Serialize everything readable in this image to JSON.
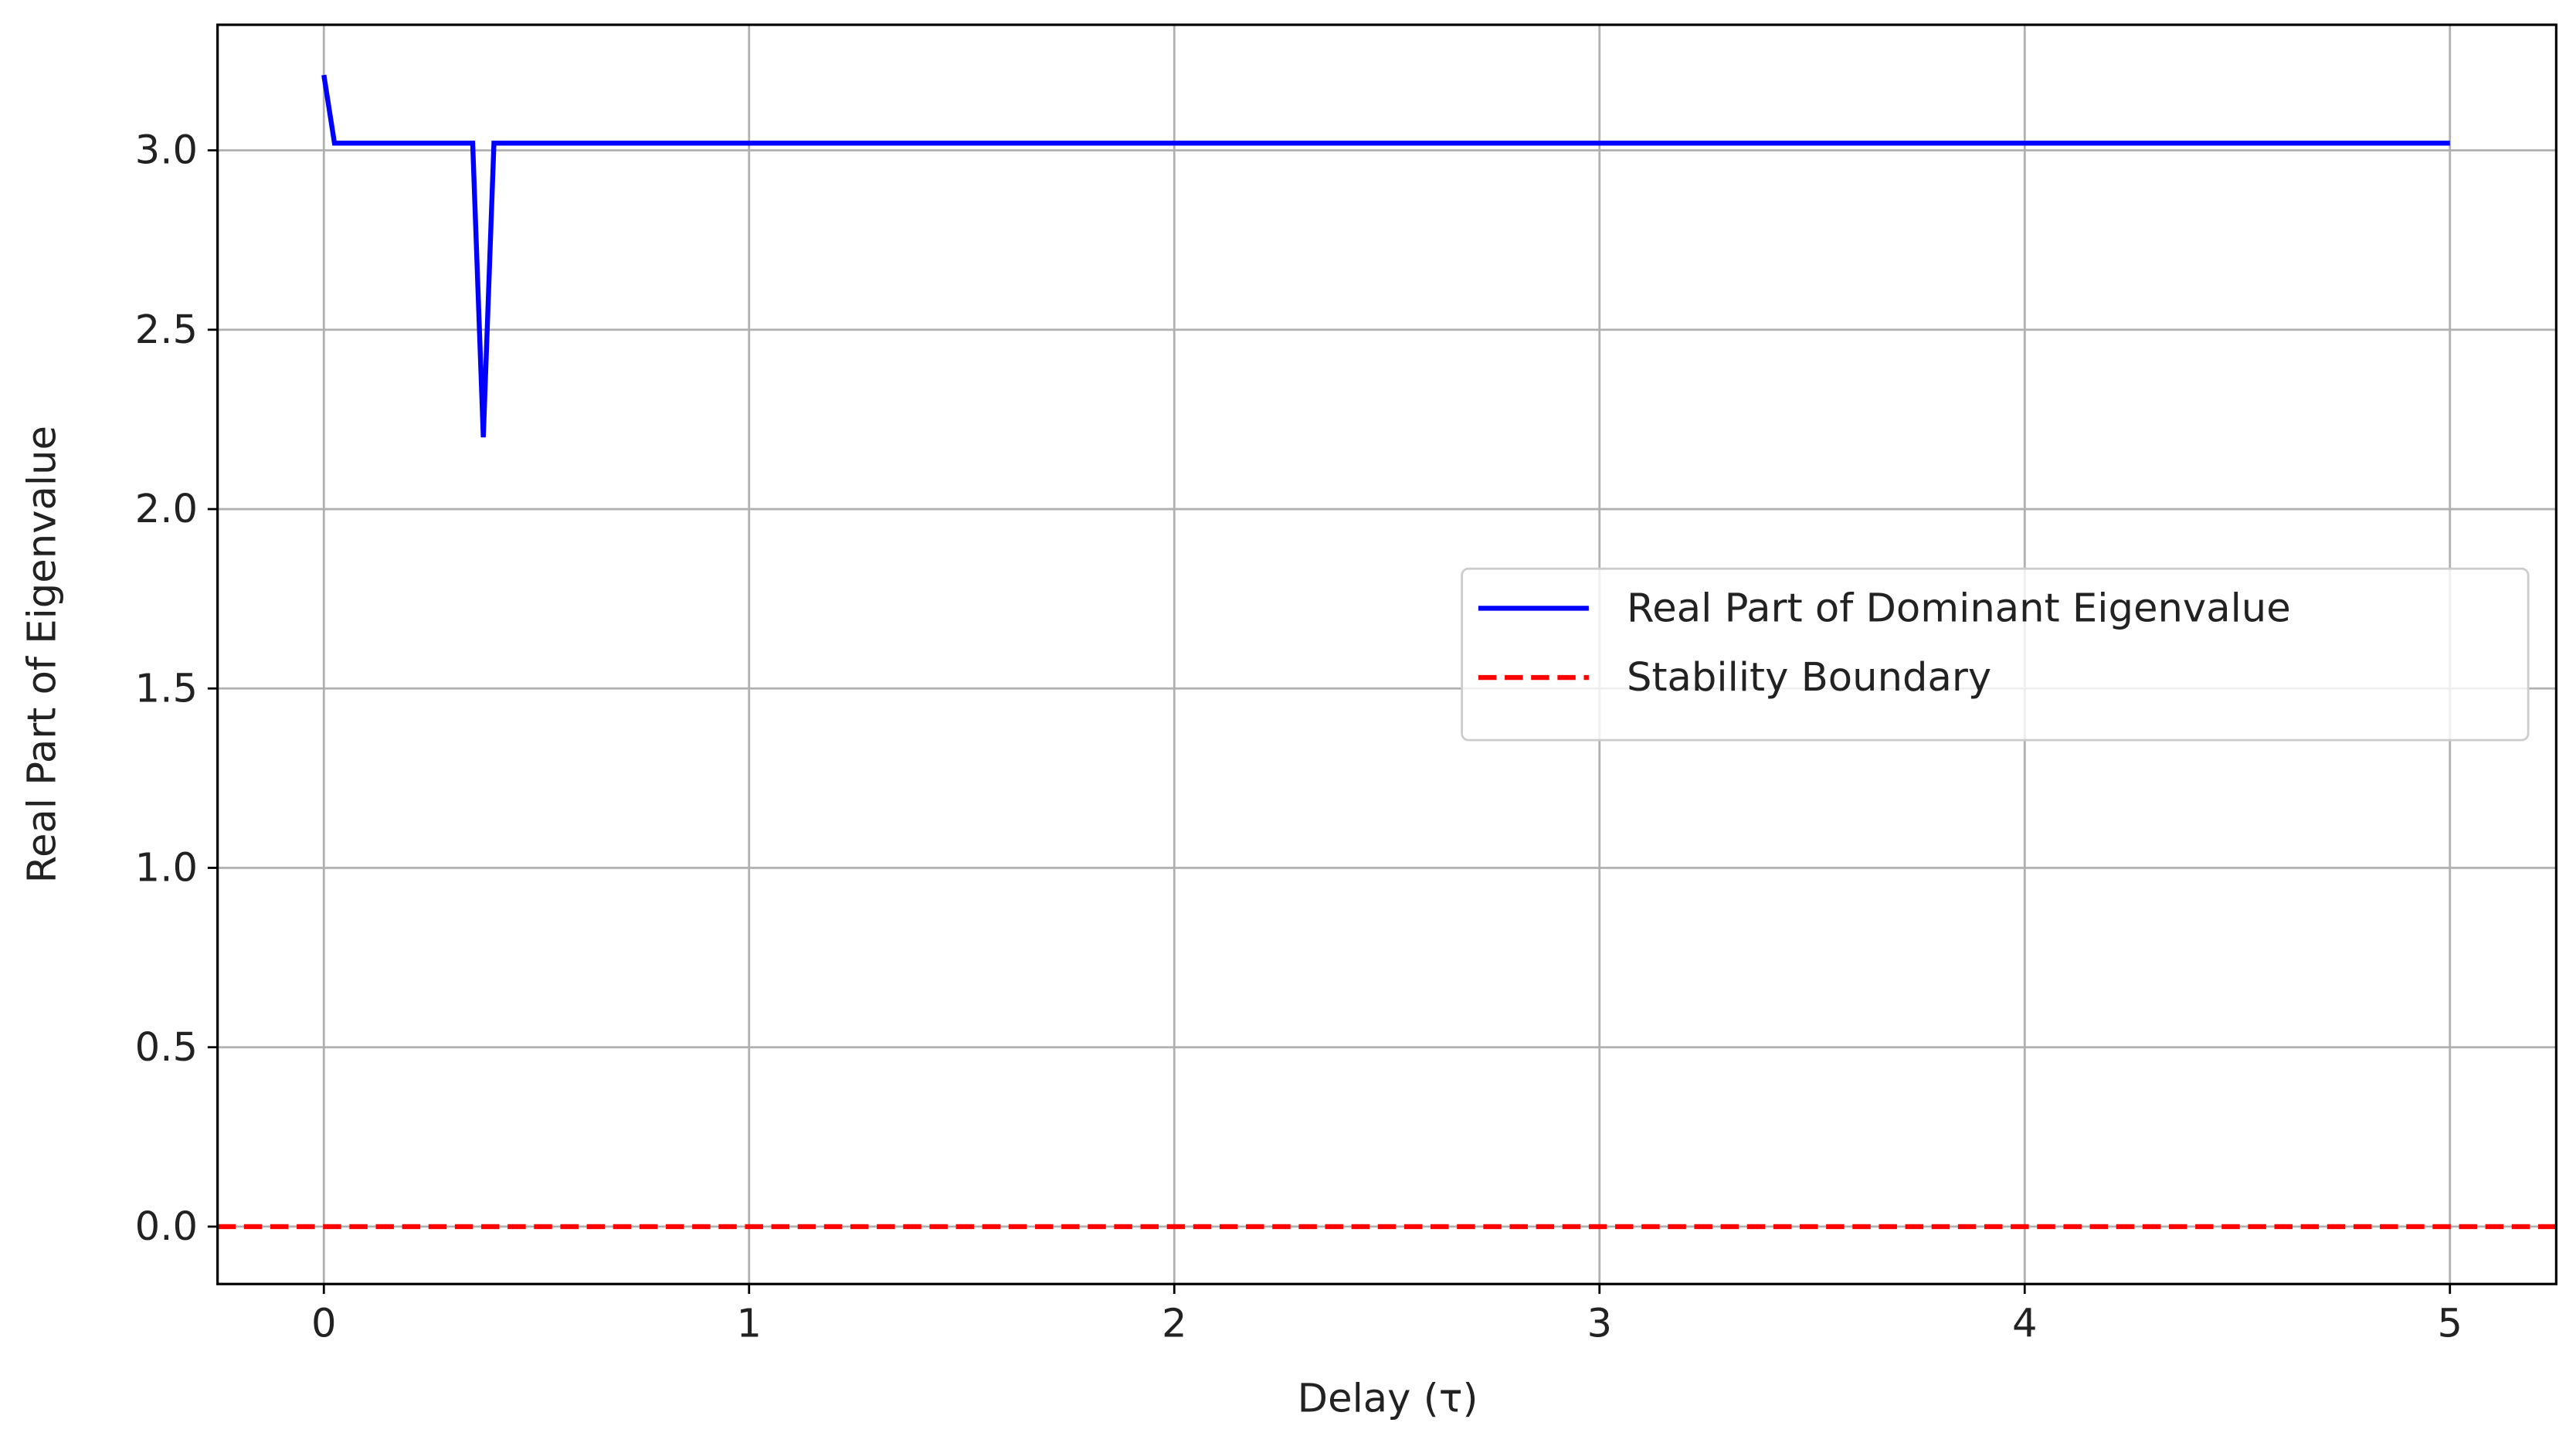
{
  "chart_data": {
    "type": "line",
    "x_label": "Delay (τ)",
    "y_label": "Real Part of Eigenvalue",
    "x": [
      0,
      0.025,
      0.35,
      0.375,
      0.4,
      5
    ],
    "series": [
      {
        "name": "Real Part of Dominant Eigenvalue",
        "color": "#0000ff",
        "values": [
          3.21,
          3.02,
          3.02,
          2.2,
          3.02,
          3.02
        ]
      }
    ],
    "hline": {
      "name": "Stability Boundary",
      "value": 0,
      "color": "#ff0000",
      "style": "dashed"
    },
    "xlim": [
      -0.25,
      5.25
    ],
    "ylim": [
      -0.16,
      3.35
    ],
    "xticks": [
      0,
      1,
      2,
      3,
      4,
      5
    ],
    "yticks": [
      {
        "value": 0,
        "label": "0.0"
      },
      {
        "value": 0.5,
        "label": "0.5"
      },
      {
        "value": 1,
        "label": "1.0"
      },
      {
        "value": 1.5,
        "label": "1.5"
      },
      {
        "value": 2,
        "label": "2.0"
      },
      {
        "value": 2.5,
        "label": "2.5"
      },
      {
        "value": 3,
        "label": "3.0"
      }
    ],
    "grid": true,
    "legend": "center right"
  }
}
